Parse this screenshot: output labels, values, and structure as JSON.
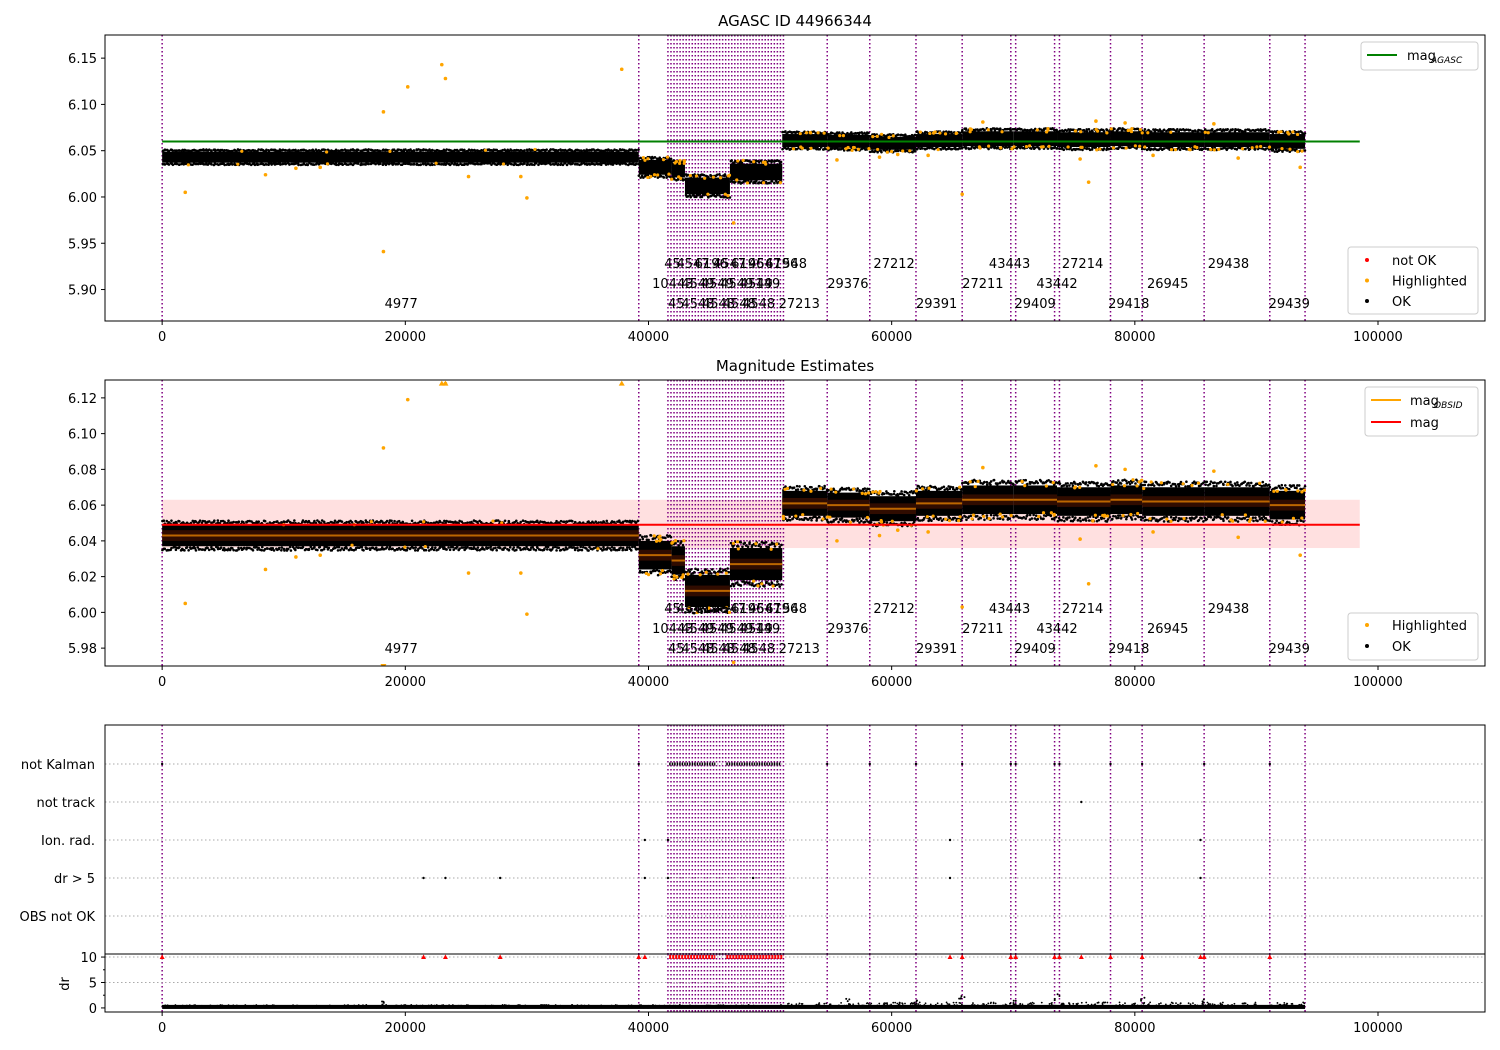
{
  "chart_data": [
    {
      "type": "scatter",
      "title": "AGASC ID 44966344",
      "xlabel": "",
      "ylabel": "",
      "xlim": [
        -4700,
        108800
      ],
      "ylim": [
        5.866,
        6.175
      ],
      "xticks": [
        0,
        20000,
        40000,
        60000,
        80000,
        100000
      ],
      "xticklabels": [
        "0",
        "20000",
        "40000",
        "60000",
        "80000",
        "100000"
      ],
      "yticks": [
        5.9,
        5.95,
        6.0,
        6.05,
        6.1,
        6.15
      ],
      "yticklabels": [
        "5.90",
        "5.95",
        "6.00",
        "6.05",
        "6.10",
        "6.15"
      ],
      "grid": false,
      "legends": [
        {
          "placement": "top-right",
          "entries": [
            {
              "label": "mag",
              "sub": "AGASC",
              "color": "#008000",
              "kind": "line"
            }
          ]
        },
        {
          "placement": "lower-right",
          "entries": [
            {
              "label": "not OK",
              "color": "#ff0000",
              "kind": "dot"
            },
            {
              "label": "Highlighted",
              "color": "#ffa500",
              "kind": "dot"
            },
            {
              "label": "OK",
              "color": "#000000",
              "kind": "dot"
            }
          ]
        }
      ],
      "reference_line": {
        "name": "mag_AGASC",
        "y": 6.06,
        "x_range": [
          0,
          98500
        ],
        "color": "#008000"
      },
      "segments": [
        {
          "x0": 0,
          "x1": 39200,
          "center": 6.043,
          "spread": 0.006,
          "mean": 6.043
        },
        {
          "x0": 39200,
          "x1": 41900,
          "center": 6.032,
          "spread": 0.008,
          "mean": 6.032
        },
        {
          "x0": 41900,
          "x1": 43000,
          "center": 6.029,
          "spread": 0.008,
          "mean": 6.029
        },
        {
          "x0": 43000,
          "x1": 46700,
          "center": 6.012,
          "spread": 0.009,
          "mean": 6.012
        },
        {
          "x0": 46700,
          "x1": 51000,
          "center": 6.027,
          "spread": 0.009,
          "mean": 6.027
        },
        {
          "x0": 51000,
          "x1": 54700,
          "center": 6.061,
          "spread": 0.007,
          "mean": 6.061
        },
        {
          "x0": 54700,
          "x1": 58200,
          "center": 6.06,
          "spread": 0.007,
          "mean": 6.06
        },
        {
          "x0": 58200,
          "x1": 62000,
          "center": 6.058,
          "spread": 0.007,
          "mean": 6.058
        },
        {
          "x0": 62000,
          "x1": 65800,
          "center": 6.061,
          "spread": 0.007,
          "mean": 6.061
        },
        {
          "x0": 65800,
          "x1": 70000,
          "center": 6.063,
          "spread": 0.008,
          "mean": 6.063
        },
        {
          "x0": 70000,
          "x1": 73600,
          "center": 6.063,
          "spread": 0.008,
          "mean": 6.063
        },
        {
          "x0": 73600,
          "x1": 78000,
          "center": 6.062,
          "spread": 0.008,
          "mean": 6.062
        },
        {
          "x0": 78000,
          "x1": 80600,
          "center": 6.063,
          "spread": 0.008,
          "mean": 6.063
        },
        {
          "x0": 80600,
          "x1": 85700,
          "center": 6.062,
          "spread": 0.008,
          "mean": 6.062
        },
        {
          "x0": 85700,
          "x1": 91100,
          "center": 6.062,
          "spread": 0.008,
          "mean": 6.062
        },
        {
          "x0": 91100,
          "x1": 94000,
          "center": 6.06,
          "spread": 0.008,
          "mean": 6.06
        }
      ],
      "highlighted_points": [
        [
          1900,
          6.005
        ],
        [
          18200,
          6.092
        ],
        [
          18200,
          5.941
        ],
        [
          20200,
          6.119
        ],
        [
          23000,
          6.143
        ],
        [
          23300,
          6.128
        ],
        [
          30000,
          5.999
        ],
        [
          37800,
          6.138
        ],
        [
          25200,
          6.022
        ],
        [
          29500,
          6.022
        ],
        [
          8500,
          6.024
        ],
        [
          13000,
          6.032
        ],
        [
          11000,
          6.031
        ],
        [
          47000,
          5.972
        ],
        [
          65800,
          6.003
        ],
        [
          76200,
          6.016
        ],
        [
          76800,
          6.082
        ],
        [
          79200,
          6.08
        ],
        [
          86500,
          6.079
        ],
        [
          93600,
          6.032
        ],
        [
          55500,
          6.04
        ],
        [
          59000,
          6.043
        ],
        [
          60500,
          6.046
        ],
        [
          63000,
          6.045
        ],
        [
          75500,
          6.041
        ],
        [
          81500,
          6.045
        ],
        [
          88500,
          6.042
        ],
        [
          67500,
          6.081
        ]
      ],
      "vertical_lines": [
        0,
        39200,
        41600,
        41850,
        42100,
        42350,
        42600,
        42850,
        43100,
        43350,
        43600,
        43850,
        44100,
        44350,
        44600,
        44850,
        45100,
        45350,
        45600,
        45850,
        46100,
        46350,
        46600,
        46850,
        47100,
        47350,
        47600,
        47850,
        48100,
        48350,
        48600,
        48850,
        49100,
        49350,
        49600,
        49850,
        50100,
        50350,
        50600,
        50850,
        51100,
        54700,
        58200,
        62000,
        65800,
        69800,
        70200,
        73400,
        73800,
        78000,
        80600,
        85700,
        91100,
        94000
      ],
      "annotations": [
        {
          "text": "4977",
          "x": 18300,
          "row": 3
        },
        {
          "text": "10443",
          "x": 40300,
          "row": 2
        },
        {
          "text": "45",
          "x": 41300,
          "row": 1
        },
        {
          "text": "4547",
          "x": 42300,
          "row": 1
        },
        {
          "text": "6196",
          "x": 43800,
          "row": 1
        },
        {
          "text": "4547",
          "x": 45300,
          "row": 1
        },
        {
          "text": "6196",
          "x": 46800,
          "row": 1
        },
        {
          "text": "4547",
          "x": 48200,
          "row": 1
        },
        {
          "text": "6196",
          "x": 49600,
          "row": 1
        },
        {
          "text": "548",
          "x": 51000,
          "row": 1
        },
        {
          "text": "4549",
          "x": 42700,
          "row": 2
        },
        {
          "text": "4549",
          "x": 44300,
          "row": 2
        },
        {
          "text": "4549",
          "x": 45900,
          "row": 2
        },
        {
          "text": "4549",
          "x": 47500,
          "row": 2
        },
        {
          "text": "149",
          "x": 48800,
          "row": 2
        },
        {
          "text": "45",
          "x": 41600,
          "row": 3
        },
        {
          "text": "4548",
          "x": 42700,
          "row": 3
        },
        {
          "text": "4548",
          "x": 44400,
          "row": 3
        },
        {
          "text": "4548",
          "x": 46100,
          "row": 3
        },
        {
          "text": "4548",
          "x": 47700,
          "row": 3
        },
        {
          "text": "27213",
          "x": 50700,
          "row": 3
        },
        {
          "text": "29376",
          "x": 54700,
          "row": 2
        },
        {
          "text": "27212",
          "x": 58500,
          "row": 1
        },
        {
          "text": "29391",
          "x": 62000,
          "row": 3
        },
        {
          "text": "27211",
          "x": 65800,
          "row": 2
        },
        {
          "text": "43443",
          "x": 68000,
          "row": 1
        },
        {
          "text": "29409",
          "x": 70100,
          "row": 3
        },
        {
          "text": "43442",
          "x": 71900,
          "row": 2
        },
        {
          "text": "27214",
          "x": 74000,
          "row": 1
        },
        {
          "text": "29418",
          "x": 77800,
          "row": 3
        },
        {
          "text": "26945",
          "x": 81000,
          "row": 2
        },
        {
          "text": "29438",
          "x": 86000,
          "row": 1
        },
        {
          "text": "29439",
          "x": 91000,
          "row": 3
        }
      ]
    },
    {
      "type": "scatter",
      "title": "Magnitude Estimates",
      "xlabel": "",
      "ylabel": "",
      "xlim": [
        -4700,
        108800
      ],
      "ylim": [
        5.97,
        6.13
      ],
      "xticks": [
        0,
        20000,
        40000,
        60000,
        80000,
        100000
      ],
      "xticklabels": [
        "0",
        "20000",
        "40000",
        "60000",
        "80000",
        "100000"
      ],
      "yticks": [
        5.98,
        6.0,
        6.02,
        6.04,
        6.06,
        6.08,
        6.1,
        6.12
      ],
      "yticklabels": [
        "5.98",
        "6.00",
        "6.02",
        "6.04",
        "6.06",
        "6.08",
        "6.10",
        "6.12"
      ],
      "grid": false,
      "legends": [
        {
          "placement": "top-right",
          "entries": [
            {
              "label": "mag",
              "sub": "OBSID",
              "color": "#ffa500",
              "kind": "line"
            },
            {
              "label": "mag",
              "sub": "",
              "color": "#ff0000",
              "kind": "line"
            }
          ]
        },
        {
          "placement": "lower-right",
          "entries": [
            {
              "label": "Highlighted",
              "color": "#ffa500",
              "kind": "dot"
            },
            {
              "label": "OK",
              "color": "#000000",
              "kind": "dot"
            }
          ]
        }
      ],
      "reference_line": {
        "name": "mag",
        "y": 6.049,
        "x_range": [
          0,
          98500
        ],
        "color": "#ff0000"
      },
      "reference_band": {
        "y0": 6.036,
        "y1": 6.063,
        "color": "#ffcccc"
      },
      "off_scale_markers": [
        [
          18200,
          5.97
        ],
        [
          23000,
          6.128
        ],
        [
          23300,
          6.128
        ],
        [
          37800,
          6.128
        ]
      ]
    },
    {
      "type": "scatter",
      "title": "",
      "xlabel": "",
      "ylabel": "",
      "categories": [
        "not Kalman",
        "not track",
        "Ion. rad.",
        "dr > 5",
        "OBS not OK"
      ],
      "xlim": [
        -4700,
        108800
      ],
      "flags": {
        "not Kalman": [
          0,
          39200,
          54700,
          58200,
          62000,
          65800,
          69800,
          70200,
          73400,
          73800,
          78000,
          80600,
          85700,
          91100
        ],
        "not track": [
          75600
        ],
        "Ion. rad.": [
          39700,
          41600,
          64800,
          85400
        ],
        "dr > 5": [
          21500,
          23300,
          27800,
          39700,
          41600,
          48600,
          64800,
          85400
        ],
        "OBS not OK": []
      },
      "not_kalman_blocks": [
        [
          41700,
          45500
        ],
        [
          46400,
          50900
        ]
      ]
    },
    {
      "type": "scatter",
      "title": "",
      "xlabel": "",
      "ylabel": "dr",
      "xlim": [
        -4700,
        108800
      ],
      "ylim": [
        -0.8,
        10.6
      ],
      "xticks": [
        0,
        20000,
        40000,
        60000,
        80000,
        100000
      ],
      "xticklabels": [
        "0",
        "20000",
        "40000",
        "60000",
        "80000",
        "100000"
      ],
      "yticks": [
        0,
        5,
        10
      ],
      "yticklabels": [
        "0",
        "5",
        "10"
      ],
      "clipped_value": 10,
      "clipped_points": [
        0,
        21500,
        23300,
        27800,
        39200,
        39700,
        64800,
        65800,
        69800,
        70200,
        73400,
        73800,
        75600,
        78000,
        80600,
        85400,
        85700,
        91100
      ],
      "clipped_blocks": [
        [
          41700,
          45500
        ],
        [
          46400,
          51100
        ]
      ],
      "spikes": [
        [
          18200,
          1.3
        ],
        [
          56500,
          1.8
        ],
        [
          65800,
          2.5
        ],
        [
          70000,
          2.9
        ],
        [
          73600,
          2.7
        ],
        [
          80600,
          2.8
        ],
        [
          85700,
          1.7
        ],
        [
          62000,
          1.5
        ]
      ]
    }
  ]
}
